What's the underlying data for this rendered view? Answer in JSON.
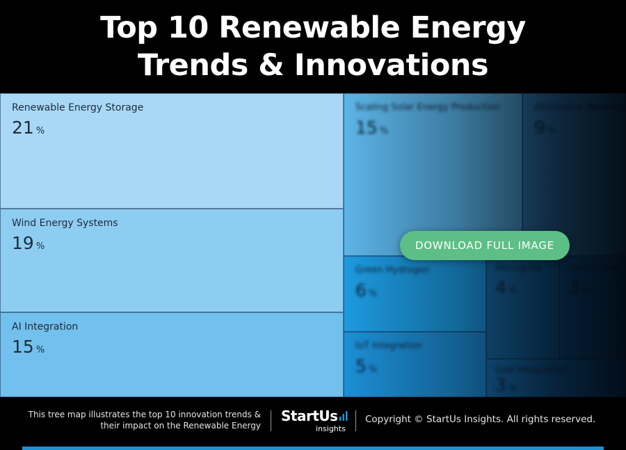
{
  "header": {
    "title_line1": "Top 10 Renewable Energy",
    "title_line2": "Trends & Innovations"
  },
  "chart_data": {
    "type": "treemap",
    "title": "Top 10 Renewable Energy Trends & Innovations",
    "unit": "%",
    "items": [
      {
        "name": "Renewable Energy Storage",
        "value": 21,
        "color": "#a9d8f7"
      },
      {
        "name": "Wind Energy Systems",
        "value": 19,
        "color": "#8ecdf2"
      },
      {
        "name": "AI Integration",
        "value": 15,
        "color": "#72c0ed"
      },
      {
        "name": "Scaling Solar Energy Production",
        "value": 15,
        "color": "#5db6e8"
      },
      {
        "name": "Alternative Renewable Sources",
        "value": 9,
        "color": "#3a8fc6"
      },
      {
        "name": "Green Hydrogen",
        "value": 6,
        "color": "#1d9be0"
      },
      {
        "name": "IoT Integration",
        "value": 5,
        "color": "#1d8fd6"
      },
      {
        "name": "Microgrids",
        "value": 4,
        "color": "#1a73b0"
      },
      {
        "name": "Distributed Energy Generation",
        "value": 3,
        "color": "#176aa4"
      },
      {
        "name": "Grid Integration",
        "value": 3,
        "color": "#1a78b8"
      }
    ]
  },
  "cta": {
    "label": "DOWNLOAD FULL IMAGE"
  },
  "footer": {
    "description_line1": "This tree map illustrates the top 10 innovation trends &",
    "description_line2": "their impact on the Renewable Energy",
    "logo_main": "StartUs",
    "logo_sub": "insights",
    "copyright": "Copyright © StartUs Insights. All rights reserved."
  }
}
